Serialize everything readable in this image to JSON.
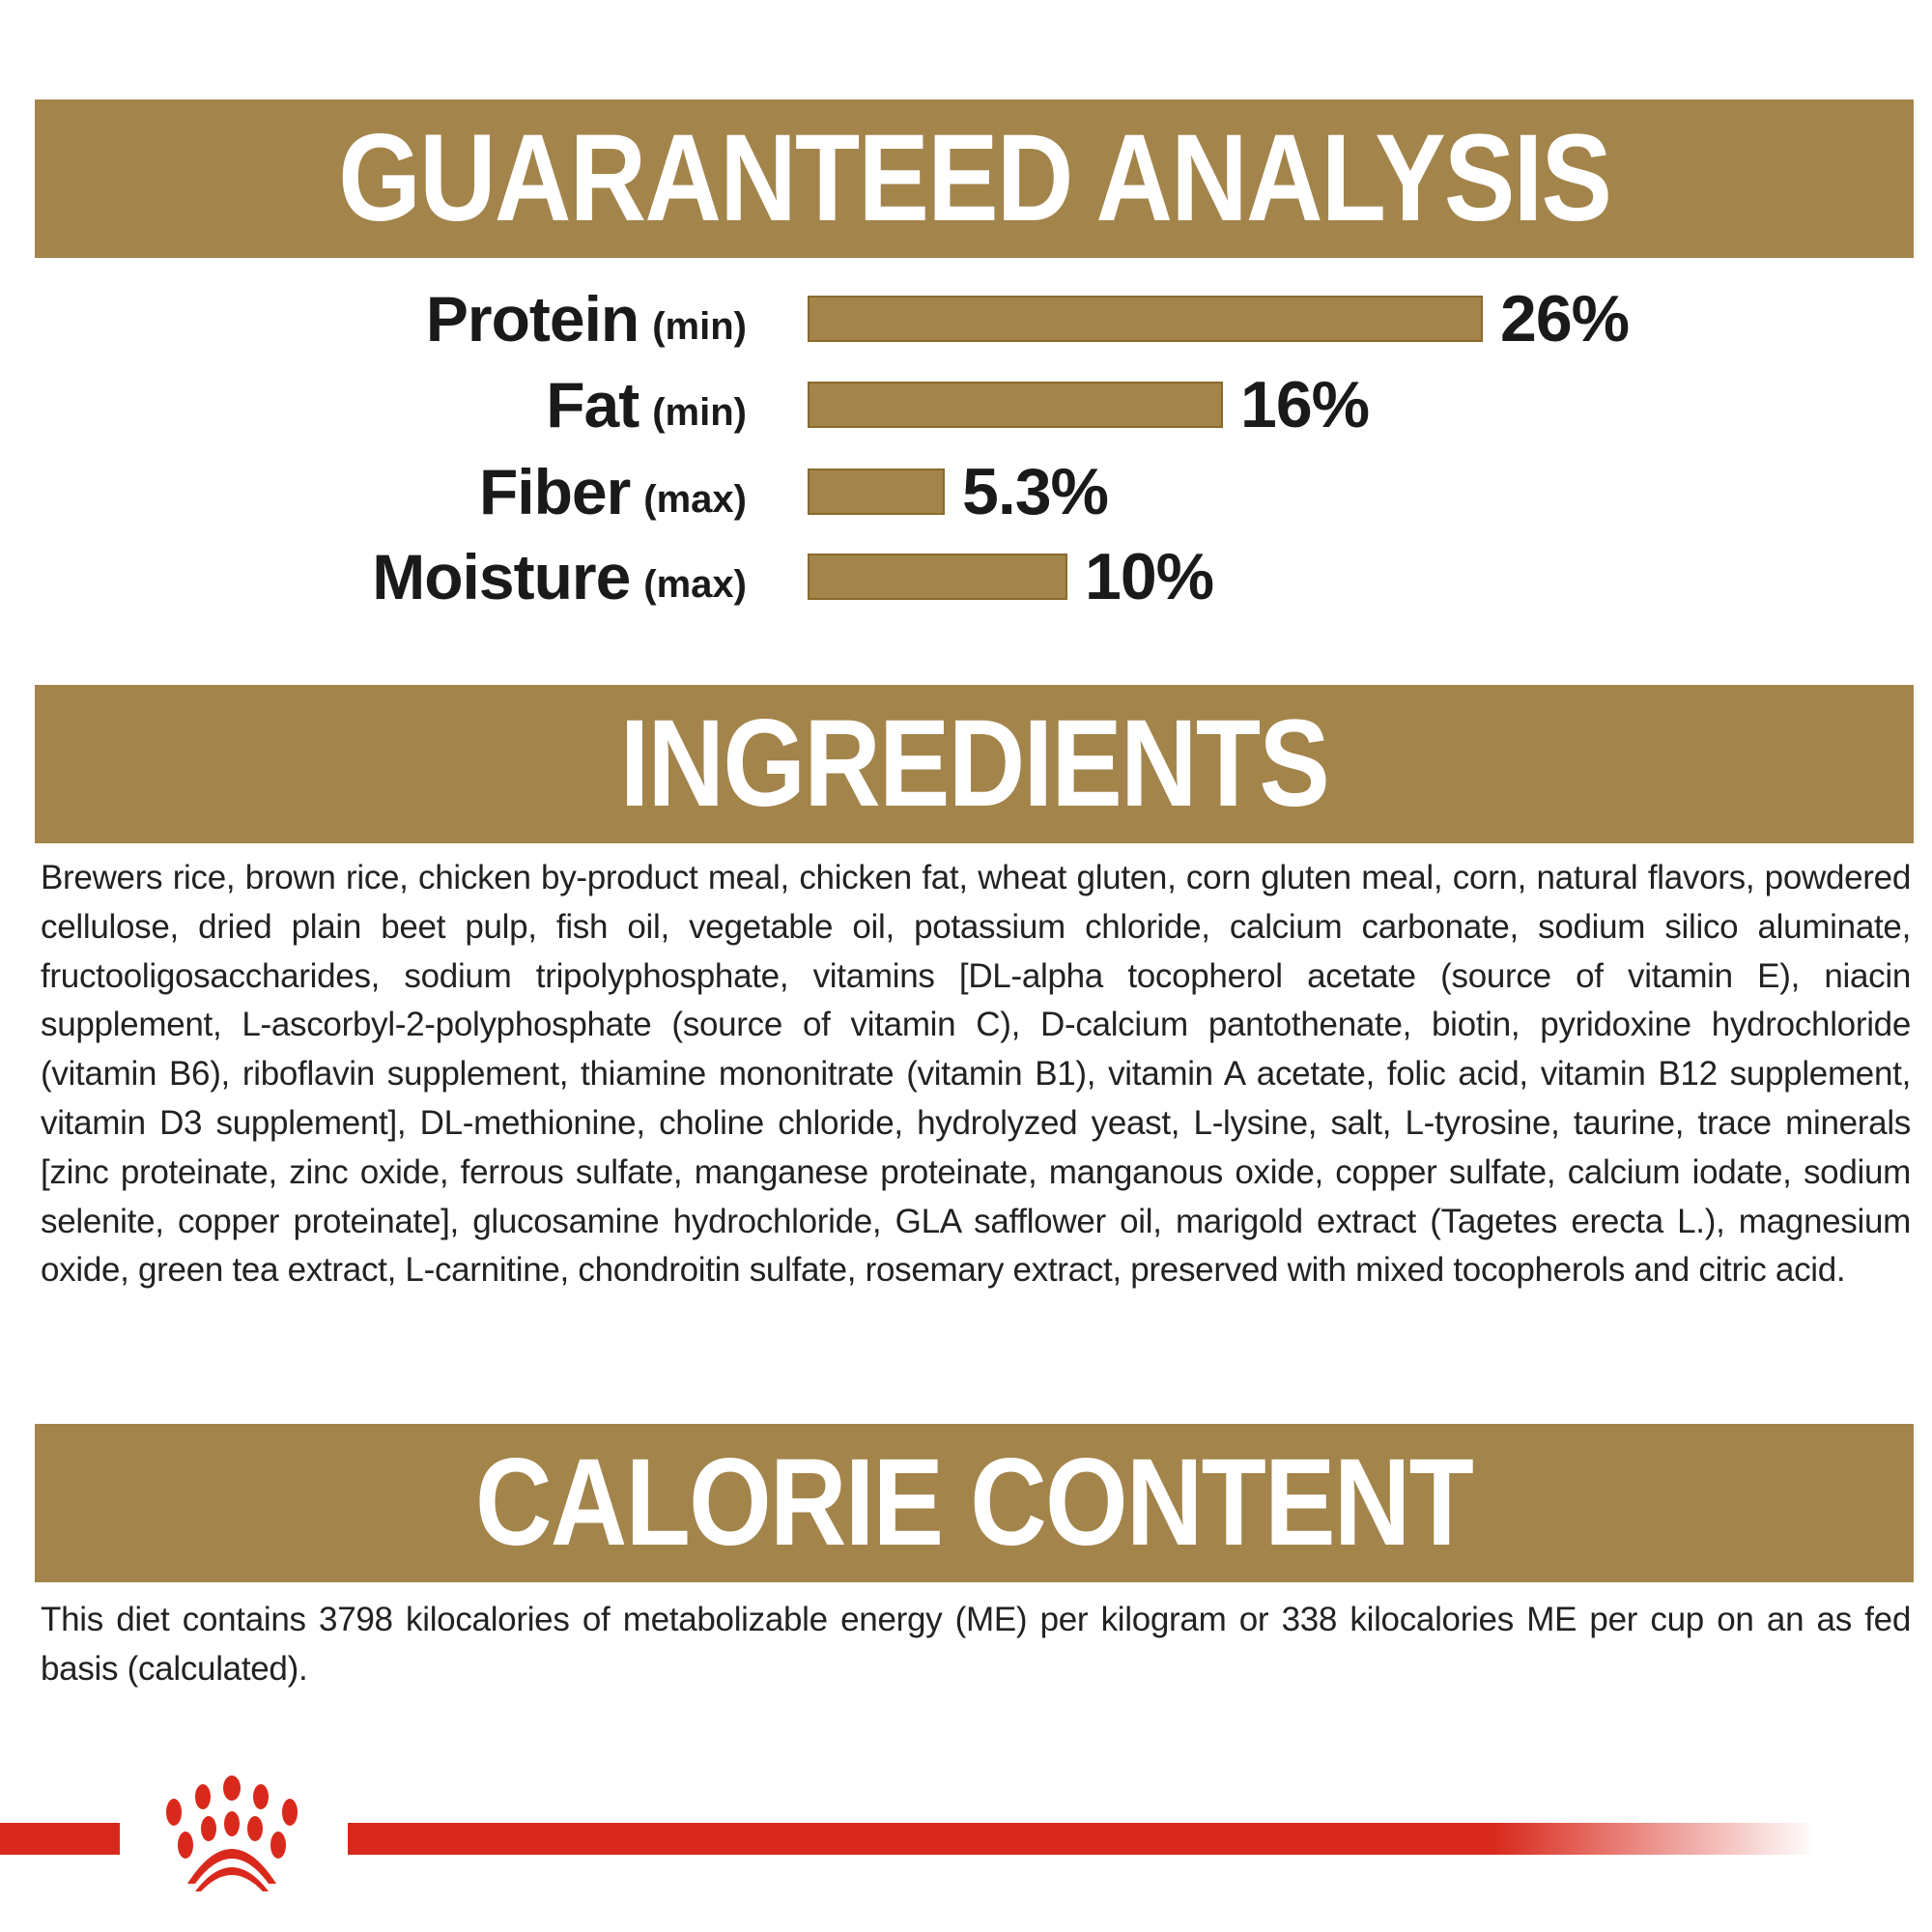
{
  "colors": {
    "banner": "#a3844b",
    "bar": "#a3844b",
    "brand_red": "#d9291c",
    "text": "#1a1a1a"
  },
  "analysis": {
    "title": "GUARANTEED ANALYSIS",
    "rows": [
      {
        "name": "Protein",
        "qualifier": "(min)",
        "value": 26,
        "label": "26%"
      },
      {
        "name": "Fat",
        "qualifier": "(min)",
        "value": 16,
        "label": "16%"
      },
      {
        "name": "Fiber",
        "qualifier": "(max)",
        "value": 5.3,
        "label": "5.3%"
      },
      {
        "name": "Moisture",
        "qualifier": "(max)",
        "value": 10,
        "label": "10%"
      }
    ]
  },
  "ingredients": {
    "title": "INGREDIENTS",
    "text": "Brewers rice, brown rice, chicken by-product meal, chicken fat, wheat gluten, corn gluten meal, corn, natural flavors, powdered cellulose, dried plain beet pulp, fish oil, vegetable oil, potassium chloride, calcium carbonate, sodium silico aluminate, fructooligosaccharides, sodium tripolyphosphate, vitamins [DL-alpha tocopherol acetate (source of vitamin E), niacin supplement, L-ascorbyl-2-polyphosphate (source of vitamin C), D-calcium pantothenate, biotin, pyridoxine hydrochloride (vitamin B6), riboflavin supplement, thiamine mononitrate (vitamin B1), vitamin A acetate, folic acid, vitamin B12 supplement, vitamin D3 supplement], DL-methionine, choline chloride, hydrolyzed yeast, L-lysine, salt, L-tyrosine, taurine, trace minerals [zinc proteinate, zinc oxide, ferrous sulfate, manganese proteinate, manganous oxide, copper sulfate, calcium iodate, sodium selenite, copper proteinate], glucosamine hydrochloride, GLA safflower oil, marigold extract (Tagetes erecta L.), magnesium oxide, green tea extract, L-carnitine, chondroitin sulfate, rosemary extract, preserved with mixed tocopherols and citric acid."
  },
  "calories": {
    "title": "CALORIE CONTENT",
    "text": "This diet contains 3798 kilocalories of metabolizable energy (ME) per kilogram or 338 kilocalories ME per cup on an as fed basis (calculated)."
  },
  "footer": {
    "logo_icon": "crown-paw-logo-icon"
  }
}
